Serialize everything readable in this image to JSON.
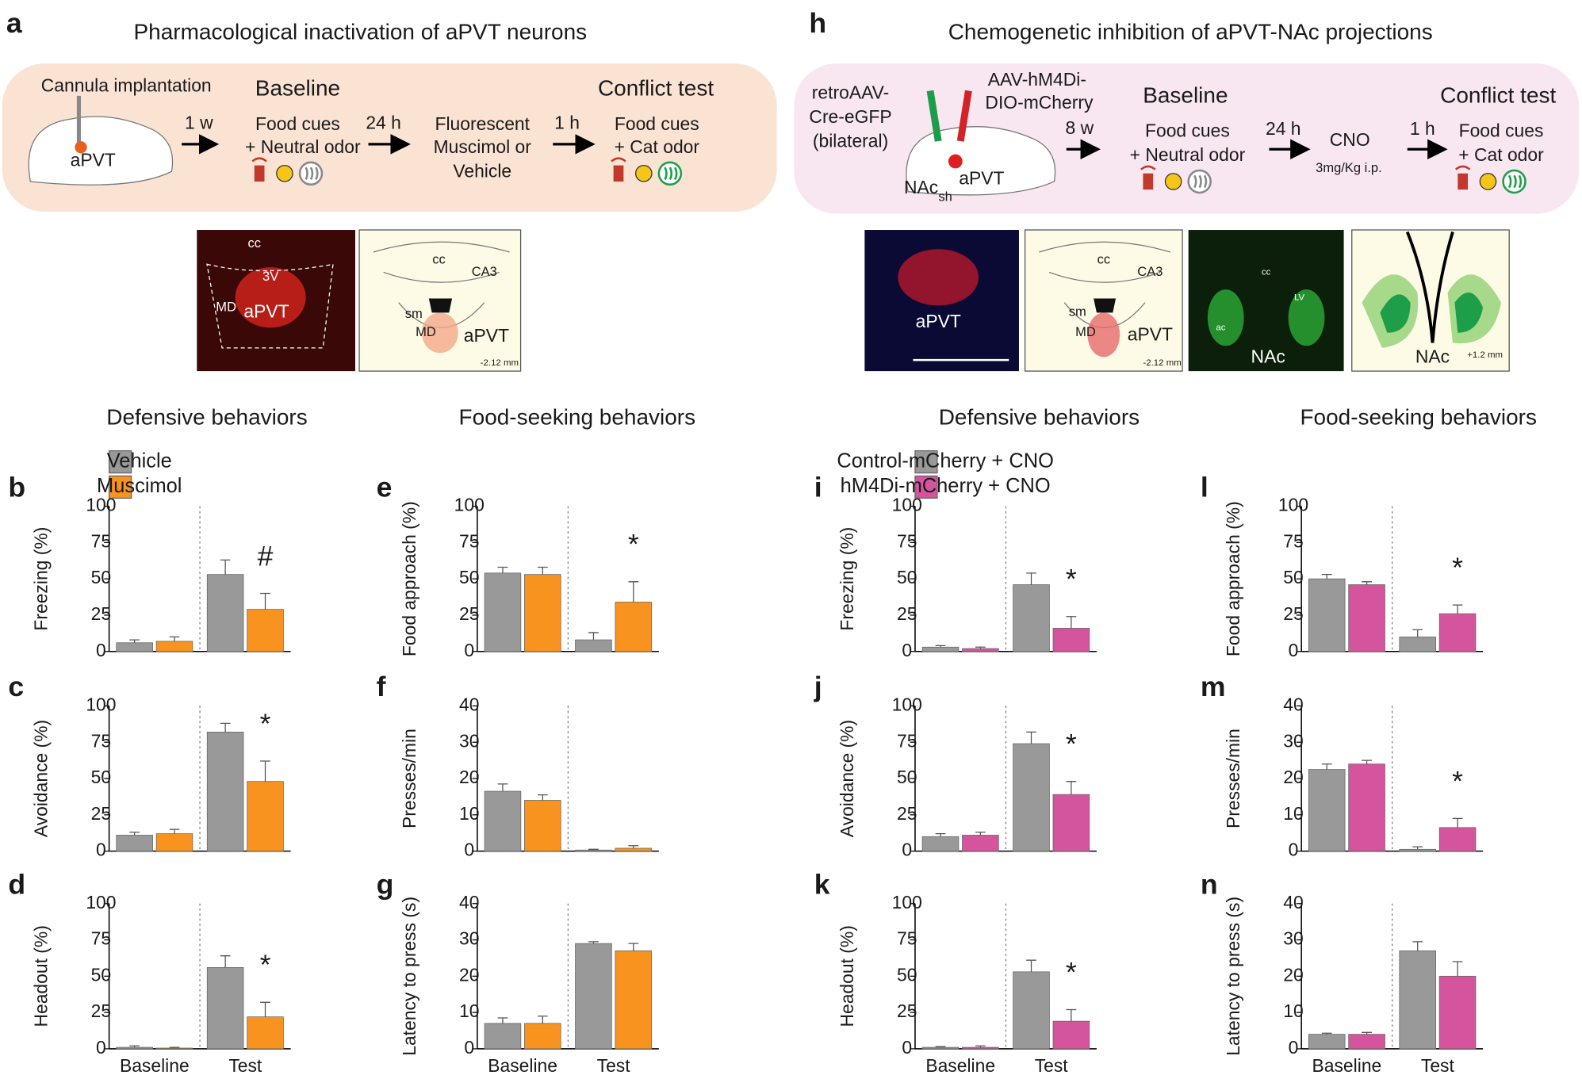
{
  "panel_a": {
    "letter": "a",
    "title": "Pharmacological inactivation of aPVT neurons",
    "surgery": "Cannula implantation",
    "region": "aPVT",
    "interval_1": "1 w",
    "stage_1": "Baseline",
    "stage_1_lines": [
      "Food cues",
      "+ Neutral odor"
    ],
    "interval_2": "24 h",
    "treatment": [
      "Fluorescent",
      "Muscimol or",
      "Vehicle"
    ],
    "interval_3": "1 h",
    "stage_2": "Conflict test",
    "stage_2_lines": [
      "Food cues",
      "+ Cat odor"
    ],
    "histology_labels": [
      "cc",
      "3V",
      "MD",
      "aPVT"
    ],
    "atlas_labels": [
      "cc",
      "CA3",
      "sm",
      "MD",
      "aPVT",
      "-2.12 mm"
    ]
  },
  "panel_h": {
    "letter": "h",
    "title": "Chemogenetic inhibition of aPVT-NAc projections",
    "virus_1": [
      "retroAAV-",
      "Cre-eGFP",
      "(bilateral)"
    ],
    "virus_2": [
      "AAV-hM4Di-",
      "DIO-mCherry"
    ],
    "region_1": "NAc",
    "region_1_sub": "sh",
    "region_2": "aPVT",
    "interval_1": "8 w",
    "stage_1": "Baseline",
    "stage_1_lines": [
      "Food cues",
      "+ Neutral odor"
    ],
    "interval_2": "24 h",
    "treatment": "CNO",
    "dose": "3mg/Kg i.p.",
    "interval_3": "1 h",
    "stage_2": "Conflict test",
    "stage_2_lines": [
      "Food cues",
      "+ Cat odor"
    ],
    "histology_1_labels": [
      "aPVT"
    ],
    "atlas_1_labels": [
      "cc",
      "CA3",
      "sm",
      "MD",
      "aPVT",
      "-2.12 mm"
    ],
    "histology_2_labels": [
      "cc",
      "LV",
      "ac",
      "NAc"
    ],
    "atlas_2_labels": [
      "NAc",
      "+1.2 mm"
    ]
  },
  "headings": [
    "Defensive behaviors",
    "Food-seeking behaviors",
    "Defensive behaviors",
    "Food-seeking behaviors"
  ],
  "chart_data": [
    {
      "type": "bar",
      "letter": "b",
      "ylabel": "Freezing (%)",
      "ylim": [
        0,
        100
      ],
      "yticks": [
        0,
        25,
        50,
        75,
        100
      ],
      "legend": true,
      "annotation": "#",
      "series": [
        {
          "name": "Vehicle",
          "color": "#999999",
          "values": [
            6,
            53
          ],
          "errors": [
            2,
            10
          ]
        },
        {
          "name": "Muscimol",
          "color": "#f7931e",
          "values": [
            7,
            29
          ],
          "errors": [
            3,
            11
          ]
        }
      ]
    },
    {
      "type": "bar",
      "letter": "c",
      "ylabel": "Avoidance (%)",
      "ylim": [
        0,
        100
      ],
      "yticks": [
        0,
        25,
        50,
        75,
        100
      ],
      "annotation": "*",
      "series": [
        {
          "color": "#999999",
          "values": [
            11,
            82
          ],
          "errors": [
            2,
            6
          ]
        },
        {
          "color": "#f7931e",
          "values": [
            12,
            48
          ],
          "errors": [
            3,
            14
          ]
        }
      ]
    },
    {
      "type": "bar",
      "letter": "d",
      "ylabel": "Headout (%)",
      "ylim": [
        0,
        100
      ],
      "yticks": [
        0,
        25,
        50,
        75,
        100
      ],
      "annotation": "*",
      "categories": [
        "Baseline",
        "Test"
      ],
      "series": [
        {
          "color": "#999999",
          "values": [
            1,
            56
          ],
          "errors": [
            1,
            8
          ]
        },
        {
          "color": "#f7931e",
          "values": [
            0.5,
            22
          ],
          "errors": [
            0.5,
            10
          ]
        }
      ]
    },
    {
      "type": "bar",
      "letter": "e",
      "ylabel": "Food approach (%)",
      "ylim": [
        0,
        100
      ],
      "yticks": [
        0,
        25,
        50,
        75,
        100
      ],
      "annotation": "*",
      "series": [
        {
          "color": "#999999",
          "values": [
            54,
            8
          ],
          "errors": [
            4,
            5
          ]
        },
        {
          "color": "#f7931e",
          "values": [
            53,
            34
          ],
          "errors": [
            5,
            14
          ]
        }
      ]
    },
    {
      "type": "bar",
      "letter": "f",
      "ylabel": "Presses/min",
      "ylim": [
        0,
        40
      ],
      "yticks": [
        0,
        10,
        20,
        30,
        40
      ],
      "series": [
        {
          "color": "#999999",
          "values": [
            16.5,
            0.3
          ],
          "errors": [
            2,
            0.2
          ]
        },
        {
          "color": "#f7931e",
          "values": [
            14,
            0.8
          ],
          "errors": [
            1.5,
            0.7
          ]
        }
      ]
    },
    {
      "type": "bar",
      "letter": "g",
      "ylabel": "Latency to press (s)",
      "ylim": [
        0,
        40
      ],
      "yticks": [
        0,
        10,
        20,
        30,
        40
      ],
      "categories": [
        "Baseline",
        "Test"
      ],
      "series": [
        {
          "color": "#999999",
          "values": [
            7,
            29
          ],
          "errors": [
            1.5,
            0.5
          ]
        },
        {
          "color": "#f7931e",
          "values": [
            7,
            27
          ],
          "errors": [
            2,
            2
          ]
        }
      ]
    },
    {
      "type": "bar",
      "letter": "i",
      "ylabel": "Freezing (%)",
      "ylim": [
        0,
        100
      ],
      "yticks": [
        0,
        25,
        50,
        75,
        100
      ],
      "legend": true,
      "annotation": "*",
      "series": [
        {
          "name": "Control-mCherry + CNO",
          "color": "#999999",
          "values": [
            3,
            46
          ],
          "errors": [
            1,
            8
          ]
        },
        {
          "name": "hM4Di-mCherry + CNO",
          "color": "#d4559e",
          "values": [
            2,
            16
          ],
          "errors": [
            1,
            8
          ]
        }
      ]
    },
    {
      "type": "bar",
      "letter": "j",
      "ylabel": "Avoidance (%)",
      "ylim": [
        0,
        100
      ],
      "yticks": [
        0,
        25,
        50,
        75,
        100
      ],
      "annotation": "*",
      "series": [
        {
          "color": "#999999",
          "values": [
            10,
            74
          ],
          "errors": [
            2,
            8
          ]
        },
        {
          "color": "#d4559e",
          "values": [
            11,
            39
          ],
          "errors": [
            2,
            9
          ]
        }
      ]
    },
    {
      "type": "bar",
      "letter": "k",
      "ylabel": "Headout (%)",
      "ylim": [
        0,
        100
      ],
      "yticks": [
        0,
        25,
        50,
        75,
        100
      ],
      "annotation": "*",
      "categories": [
        "Baseline",
        "Test"
      ],
      "series": [
        {
          "color": "#999999",
          "values": [
            1,
            53
          ],
          "errors": [
            0.5,
            8
          ]
        },
        {
          "color": "#d4559e",
          "values": [
            1,
            19
          ],
          "errors": [
            1,
            8
          ]
        }
      ]
    },
    {
      "type": "bar",
      "letter": "l",
      "ylabel": "Food approach (%)",
      "ylim": [
        0,
        100
      ],
      "yticks": [
        0,
        25,
        50,
        75,
        100
      ],
      "annotation": "*",
      "series": [
        {
          "color": "#999999",
          "values": [
            50,
            10
          ],
          "errors": [
            3,
            5
          ]
        },
        {
          "color": "#d4559e",
          "values": [
            46,
            26
          ],
          "errors": [
            2,
            6
          ]
        }
      ]
    },
    {
      "type": "bar",
      "letter": "m",
      "ylabel": "Presses/min",
      "ylim": [
        0,
        40
      ],
      "yticks": [
        0,
        10,
        20,
        30,
        40
      ],
      "annotation": "*",
      "series": [
        {
          "color": "#999999",
          "values": [
            22.5,
            0.5
          ],
          "errors": [
            1.5,
            0.7
          ]
        },
        {
          "color": "#d4559e",
          "values": [
            24,
            6.5
          ],
          "errors": [
            1,
            2.5
          ]
        }
      ]
    },
    {
      "type": "bar",
      "letter": "n",
      "ylabel": "Latency to press (s)",
      "ylim": [
        0,
        40
      ],
      "yticks": [
        0,
        10,
        20,
        30,
        40
      ],
      "categories": [
        "Baseline",
        "Test"
      ],
      "series": [
        {
          "color": "#999999",
          "values": [
            4,
            27
          ],
          "errors": [
            0.3,
            2.5
          ]
        },
        {
          "color": "#d4559e",
          "values": [
            4,
            20
          ],
          "errors": [
            0.5,
            4
          ]
        }
      ]
    }
  ]
}
